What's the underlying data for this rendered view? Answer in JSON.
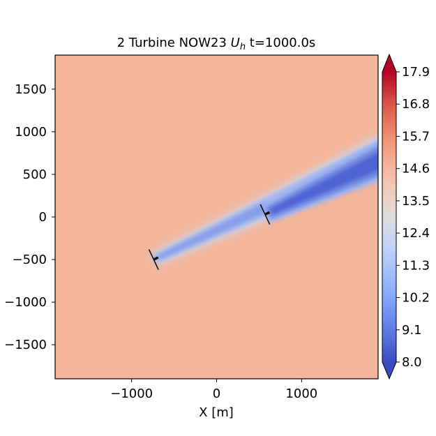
{
  "chart_data": {
    "type": "heatmap",
    "title": {
      "prefix": "2 Turbine NOW23 ",
      "var_main": "U",
      "var_sub": "h",
      "suffix": " t=1000.0s"
    },
    "xlabel": "X [m]",
    "ylabel": "",
    "xlim": [
      -1900,
      1900
    ],
    "ylim": [
      -1900,
      1900
    ],
    "xticks": [
      {
        "value": -1000,
        "label": "−1000"
      },
      {
        "value": 0,
        "label": "0"
      },
      {
        "value": 1000,
        "label": "1000"
      }
    ],
    "yticks": [
      {
        "value": 1500,
        "label": "1500"
      },
      {
        "value": 1000,
        "label": "1000"
      },
      {
        "value": 500,
        "label": "500"
      },
      {
        "value": 0,
        "label": "0"
      },
      {
        "value": -500,
        "label": "−500"
      },
      {
        "value": -1000,
        "label": "−1000"
      },
      {
        "value": -1500,
        "label": "−1500"
      }
    ],
    "colorbar": {
      "colormap": "coolwarm",
      "range": [
        8.0,
        17.9
      ],
      "extend": "both",
      "ticks": [
        "17.9",
        "16.8",
        "15.7",
        "14.6",
        "13.5",
        "12.4",
        "11.3",
        "10.2",
        "9.1",
        "8.0"
      ]
    },
    "background_speed": 15.3,
    "wind_direction_deg": 25,
    "turbines": [
      {
        "x": -740,
        "y": -500,
        "wake_min_speed": 10.0
      },
      {
        "x": 570,
        "y": 30,
        "wake_min_speed": 8.6
      }
    ],
    "colors": {
      "background": "#f2b59a",
      "wake_edge": "#cdd7ee",
      "wake_mid": "#9fb6f0",
      "wake_core": "#6f87e3",
      "wake_deep": "#4a5fd0",
      "rotor": "#111111"
    }
  }
}
